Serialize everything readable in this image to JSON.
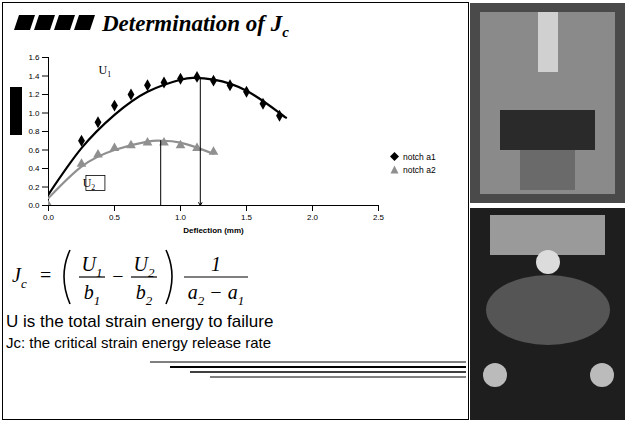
{
  "title": "Determination of Jc",
  "chart_data": {
    "type": "scatter",
    "x_label": "Deflection (mm)",
    "xlim": [
      0,
      2.5
    ],
    "ylim": [
      0,
      1.6
    ],
    "xticks": [
      {
        "value": 0,
        "label": "0.0"
      },
      {
        "value": 0.5,
        "label": "0.5"
      },
      {
        "value": 1,
        "label": "1.0"
      },
      {
        "value": 1.5,
        "label": "1.5"
      },
      {
        "value": 2,
        "label": "2.0"
      },
      {
        "value": 2.5,
        "label": "2.5"
      }
    ],
    "yticks": [
      {
        "value": 0,
        "label": "0.0"
      },
      {
        "value": 0.2,
        "label": "0.2"
      },
      {
        "value": 0.4,
        "label": "0.4"
      },
      {
        "value": 0.6,
        "label": "0.6"
      },
      {
        "value": 0.8,
        "label": "0.8"
      },
      {
        "value": 1,
        "label": "1.0"
      },
      {
        "value": 1.2,
        "label": "1.2"
      },
      {
        "value": 1.4,
        "label": "1.4"
      },
      {
        "value": 1.6,
        "label": "1.6"
      }
    ],
    "legend": "right",
    "series": [
      {
        "name": "notch a1",
        "color": "#000000",
        "marker": "diamond",
        "x": [
          0.25,
          0.375,
          0.5,
          0.625,
          0.75,
          0.875,
          1.0,
          1.125,
          1.25,
          1.375,
          1.5,
          1.625,
          1.75
        ],
        "values": [
          0.7,
          0.9,
          1.08,
          1.2,
          1.3,
          1.33,
          1.37,
          1.39,
          1.35,
          1.3,
          1.23,
          1.1,
          0.97
        ],
        "trend": {
          "x": [
            0,
            0.25,
            0.5,
            0.75,
            1.0,
            1.1,
            1.25,
            1.5,
            1.75,
            1.8
          ],
          "values": [
            0.12,
            0.62,
            0.98,
            1.23,
            1.36,
            1.38,
            1.36,
            1.24,
            1.0,
            0.95
          ]
        }
      },
      {
        "name": "notch a2",
        "color": "#909090",
        "marker": "triangle",
        "x": [
          0,
          0.25,
          0.375,
          0.5,
          0.625,
          0.75,
          0.875,
          1.0,
          1.125,
          1.25
        ],
        "values": [
          0,
          0.45,
          0.55,
          0.62,
          0.65,
          0.68,
          0.68,
          0.65,
          0.62,
          0.58
        ],
        "trend": {
          "x": [
            0,
            0.25,
            0.5,
            0.75,
            0.85,
            1.0,
            1.25
          ],
          "values": [
            0.08,
            0.42,
            0.6,
            0.69,
            0.7,
            0.68,
            0.56
          ]
        }
      }
    ],
    "annotations": [
      "U1",
      "U2"
    ],
    "markers": [
      {
        "x": 0.85,
        "y": 0.7,
        "line_style": "solid"
      },
      {
        "x": 1.15,
        "y": 1.38,
        "line_style": "arrow"
      }
    ]
  },
  "formula": {
    "lhs": "Jc",
    "equals": "=",
    "terms": [
      {
        "num": "U1",
        "den": "b1"
      },
      {
        "num": "U2",
        "den": "b2"
      }
    ],
    "operator": "−",
    "factor": {
      "num": "1",
      "den": [
        "a2",
        "a1"
      ]
    }
  },
  "notes": [
    "U is the total strain energy to failure",
    "Jc: the critical strain energy release rate"
  ]
}
